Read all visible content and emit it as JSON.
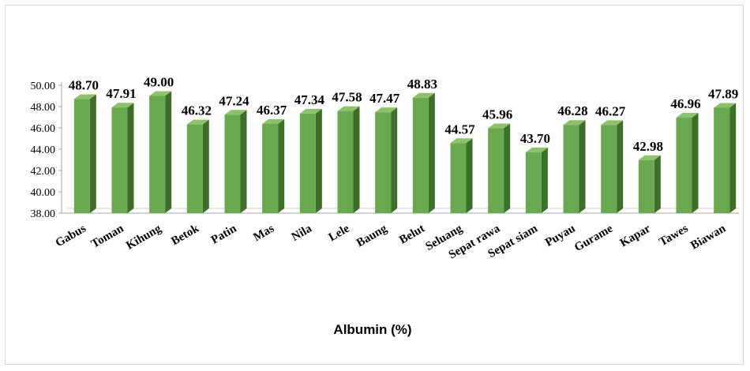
{
  "chart_data": {
    "type": "bar",
    "categories": [
      "Gabus",
      "Toman",
      "Kihung",
      "Betok",
      "Patin",
      "Mas",
      "Nila",
      "Lele",
      "Baung",
      "Belut",
      "Seluang",
      "Sepat rawa",
      "Sepat siam",
      "Puyau",
      "Gurame",
      "Kapar",
      "Tawes",
      "Biawan"
    ],
    "values": [
      48.7,
      47.91,
      49.0,
      46.32,
      47.24,
      46.37,
      47.34,
      47.58,
      47.47,
      48.83,
      44.57,
      45.96,
      43.7,
      46.28,
      46.27,
      42.98,
      46.96,
      47.89
    ],
    "value_labels": [
      "48.70",
      "47.91",
      "49.00",
      "46.32",
      "47.24",
      "46.37",
      "47.34",
      "47.58",
      "47.47",
      "48.83",
      "44.57",
      "45.96",
      "43.70",
      "46.28",
      "46.27",
      "42.98",
      "46.96",
      "47.89"
    ],
    "xlabel": "Albumin (%)",
    "ylim": [
      38,
      50
    ],
    "yticks": [
      "38.00",
      "40.00",
      "42.00",
      "44.00",
      "46.00",
      "48.00",
      "50.00"
    ],
    "grid": false,
    "bar_color": "#6aa84f",
    "bar_side_color": "#3f6e2a",
    "bar_top_color": "#8cc26b",
    "axis_color": "#a6a6a6"
  }
}
